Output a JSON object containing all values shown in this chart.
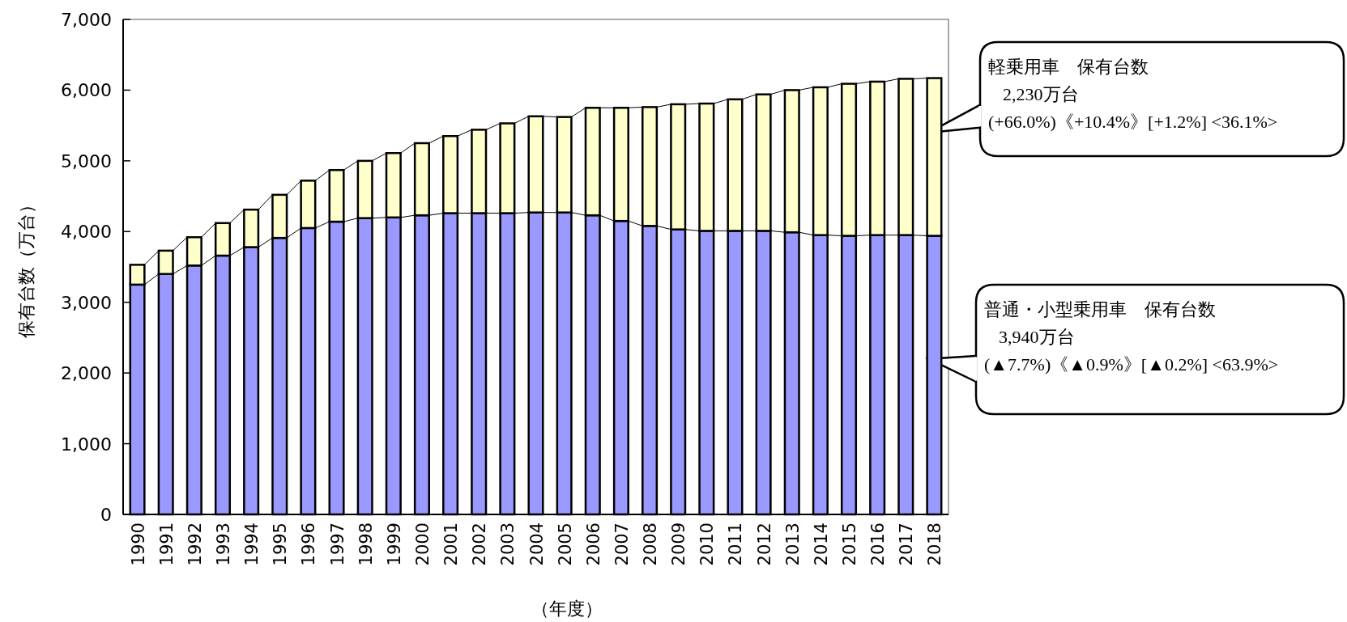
{
  "chart_data": {
    "type": "bar",
    "stacked": true,
    "ylabel": "保有台数（万台）",
    "xlabel": "（年度）",
    "categories": [
      "1990",
      "1991",
      "1992",
      "1993",
      "1994",
      "1995",
      "1996",
      "1997",
      "1998",
      "1999",
      "2000",
      "2001",
      "2002",
      "2003",
      "2004",
      "2005",
      "2006",
      "2007",
      "2008",
      "2009",
      "2010",
      "2011",
      "2012",
      "2013",
      "2014",
      "2015",
      "2016",
      "2017",
      "2018"
    ],
    "series": [
      {
        "color": "#9999ff",
        "values": [
          3250,
          3400,
          3520,
          3660,
          3780,
          3910,
          4050,
          4140,
          4190,
          4200,
          4230,
          4260,
          4260,
          4260,
          4270,
          4270,
          4230,
          4150,
          4080,
          4030,
          4010,
          4010,
          4010,
          3990,
          3950,
          3940,
          3950,
          3950,
          3940
        ]
      },
      {
        "color": "#ffffcc",
        "values": [
          280,
          330,
          400,
          460,
          530,
          610,
          670,
          730,
          810,
          910,
          1020,
          1090,
          1180,
          1270,
          1360,
          1350,
          1520,
          1600,
          1680,
          1770,
          1800,
          1860,
          1930,
          2010,
          2090,
          2150,
          2170,
          2210,
          2230
        ]
      }
    ],
    "ylim": [
      0,
      7000
    ],
    "yticks": [
      0,
      {
        "value": 1000,
        "label": "1,000"
      },
      {
        "value": 2000,
        "label": "2,000"
      },
      {
        "value": 3000,
        "label": "3,000"
      },
      {
        "value": 4000,
        "label": "4,000"
      },
      {
        "value": 5000,
        "label": "5,000"
      },
      {
        "value": 6000,
        "label": "6,000"
      },
      {
        "value": 7000,
        "label": "7,000"
      }
    ],
    "grid": false,
    "annotations": [
      "軽乗用車　保有台数\n2,230万台\n(+66.0%)《+10.4%》[+1.2%] <36.1%>",
      "普通・小型乗用車　保有台数\n3,940万台\n(▲7.7%)《▲0.9%》[▲0.2%] <63.9%>"
    ]
  }
}
